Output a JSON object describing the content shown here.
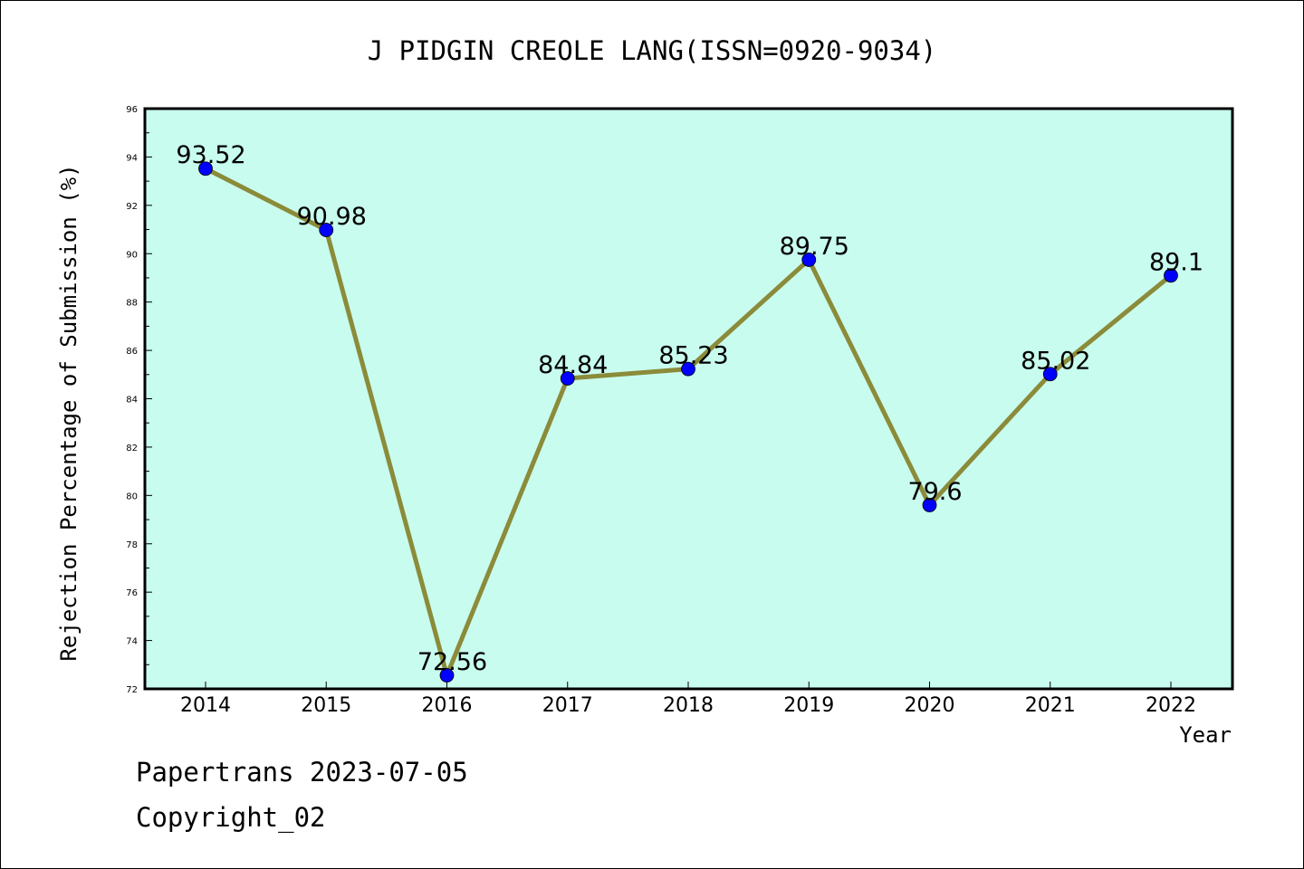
{
  "chart_data": {
    "type": "line",
    "title": "J PIDGIN CREOLE LANG(ISSN=0920-9034)",
    "xlabel": "Year",
    "ylabel": "Rejection Percentage of Submission (%)",
    "categories": [
      "2014",
      "2015",
      "2016",
      "2017",
      "2018",
      "2019",
      "2020",
      "2021",
      "2022"
    ],
    "values": [
      93.52,
      90.98,
      72.56,
      84.84,
      85.23,
      89.75,
      79.6,
      85.02,
      89.1
    ],
    "data_labels": [
      "93.52",
      "90.98",
      "72.56",
      "84.84",
      "85.23",
      "89.75",
      "79.6",
      "85.02",
      "89.1"
    ],
    "ylim": [
      72,
      96
    ],
    "yticks": [
      "72",
      "74",
      "76",
      "78",
      "80",
      "82",
      "84",
      "86",
      "88",
      "90",
      "92",
      "94",
      "96"
    ],
    "grid": false,
    "legend": "none",
    "colors": {
      "plot_background": "#c8fcee",
      "line": "#8b8b3a",
      "marker": "#0000ff",
      "axis": "#000000"
    }
  },
  "footer": {
    "line1": "Papertrans 2023-07-05",
    "line2": "Copyright_02"
  }
}
